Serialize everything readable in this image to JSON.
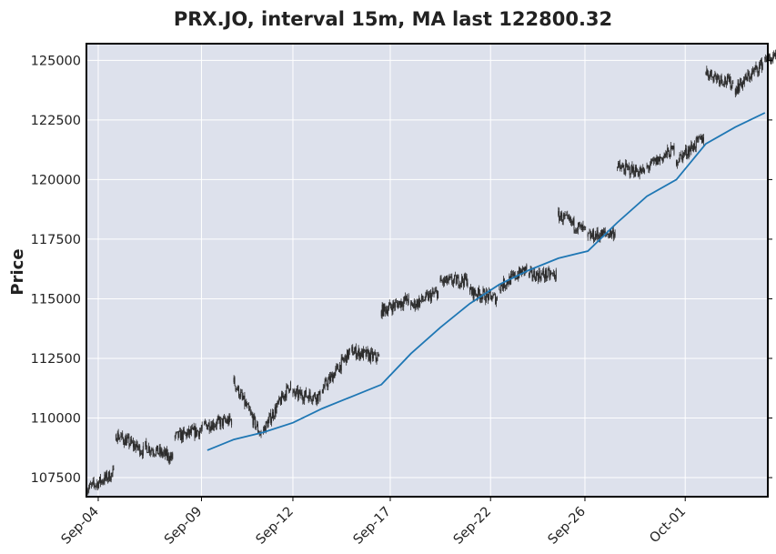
{
  "chart_data": {
    "type": "candlestick",
    "title": "PRX.JO, interval 15m, MA last 122800.32",
    "ylabel": "Price",
    "xlabel": "",
    "ylim": [
      106700,
      125700
    ],
    "grid": true,
    "x_ticks": [
      "Sep-04",
      "Sep-09",
      "Sep-12",
      "Sep-17",
      "Sep-22",
      "Sep-26",
      "Oct-01"
    ],
    "y_ticks": [
      {
        "value": 107500,
        "label": "107500"
      },
      {
        "value": 110000,
        "label": "110000"
      },
      {
        "value": 112500,
        "label": "112500"
      },
      {
        "value": 115000,
        "label": "115000"
      },
      {
        "value": 117500,
        "label": "117500"
      },
      {
        "value": 120000,
        "label": "120000"
      },
      {
        "value": 122500,
        "label": "122500"
      },
      {
        "value": 125000,
        "label": "125000"
      }
    ],
    "price_path": {
      "description_units": "trading-day index vs price",
      "segments": [
        {
          "day": 0.0,
          "open": 107000,
          "close": 107700
        },
        {
          "day": 1.0,
          "open": 109300,
          "close": 108600
        },
        {
          "day": 2.0,
          "open": 108800,
          "close": 108300
        },
        {
          "day": 3.0,
          "open": 109200,
          "close": 109500
        },
        {
          "day": 4.0,
          "open": 109700,
          "close": 109900
        },
        {
          "day": 5.0,
          "open": 111500,
          "close": 109200
        },
        {
          "day": 6.0,
          "open": 109500,
          "close": 111500
        },
        {
          "day": 7.0,
          "open": 111000,
          "close": 110900
        },
        {
          "day": 8.0,
          "open": 111200,
          "close": 112800
        },
        {
          "day": 9.0,
          "open": 112800,
          "close": 112500
        },
        {
          "day": 10.0,
          "open": 114500,
          "close": 115000
        },
        {
          "day": 11.0,
          "open": 114700,
          "close": 115300
        },
        {
          "day": 12.0,
          "open": 115700,
          "close": 115800
        },
        {
          "day": 13.0,
          "open": 115300,
          "close": 115000
        },
        {
          "day": 14.0,
          "open": 115500,
          "close": 116300
        },
        {
          "day": 15.0,
          "open": 116000,
          "close": 116000
        },
        {
          "day": 16.0,
          "open": 118500,
          "close": 117800
        },
        {
          "day": 17.0,
          "open": 117600,
          "close": 117800
        },
        {
          "day": 18.0,
          "open": 120500,
          "close": 120300
        },
        {
          "day": 19.0,
          "open": 120500,
          "close": 121300
        },
        {
          "day": 20.0,
          "open": 120800,
          "close": 121800
        },
        {
          "day": 21.0,
          "open": 124500,
          "close": 124000
        },
        {
          "day": 22.0,
          "open": 123800,
          "close": 124900
        },
        {
          "day": 23.0,
          "open": 125100,
          "close": 125000
        }
      ]
    },
    "ma_series": {
      "name": "MA",
      "points": [
        {
          "day": 4.1,
          "value": 108650
        },
        {
          "day": 5.0,
          "value": 109100
        },
        {
          "day": 6.0,
          "value": 109400
        },
        {
          "day": 7.0,
          "value": 109800
        },
        {
          "day": 8.0,
          "value": 110400
        },
        {
          "day": 9.0,
          "value": 110900
        },
        {
          "day": 10.0,
          "value": 111400
        },
        {
          "day": 11.0,
          "value": 112700
        },
        {
          "day": 12.0,
          "value": 113800
        },
        {
          "day": 13.0,
          "value": 114800
        },
        {
          "day": 14.0,
          "value": 115600
        },
        {
          "day": 15.0,
          "value": 116200
        },
        {
          "day": 16.0,
          "value": 116700
        },
        {
          "day": 17.0,
          "value": 117000
        },
        {
          "day": 18.0,
          "value": 118200
        },
        {
          "day": 19.0,
          "value": 119300
        },
        {
          "day": 20.0,
          "value": 120000
        },
        {
          "day": 21.0,
          "value": 121500
        },
        {
          "day": 22.0,
          "value": 122200
        },
        {
          "day": 23.0,
          "value": 122800
        }
      ]
    },
    "colors": {
      "background": "#dde1ec",
      "candle": "#2a2a2a",
      "ma_line": "#1f77b4",
      "grid": "#ffffff",
      "frame": "#000000"
    }
  }
}
